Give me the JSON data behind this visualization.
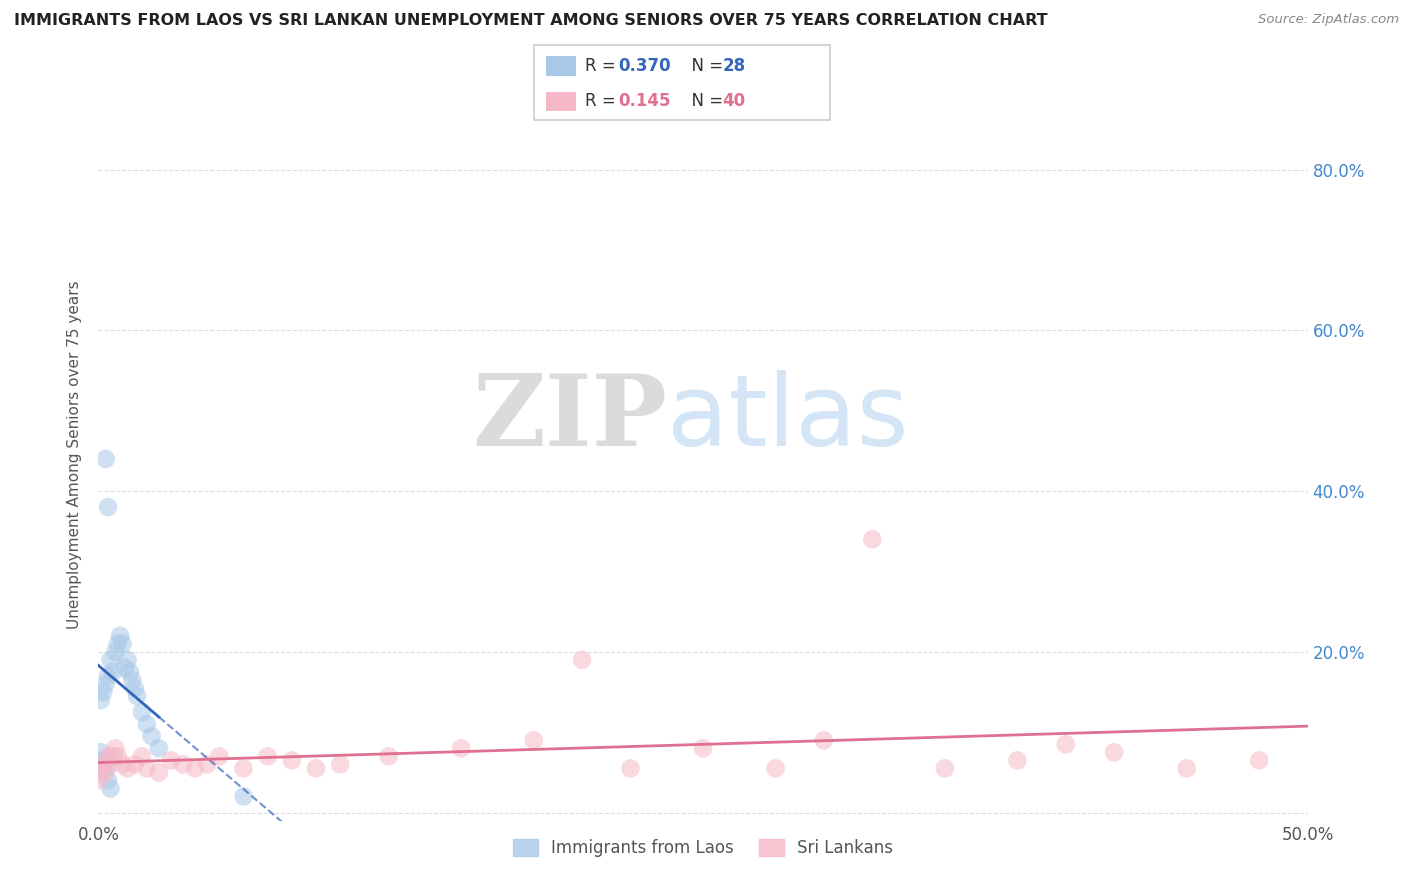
{
  "title": "IMMIGRANTS FROM LAOS VS SRI LANKAN UNEMPLOYMENT AMONG SENIORS OVER 75 YEARS CORRELATION CHART",
  "source": "Source: ZipAtlas.com",
  "ylabel": "Unemployment Among Seniors over 75 years",
  "xlim": [
    0.0,
    0.5
  ],
  "ylim": [
    -0.01,
    0.9
  ],
  "R_laos": 0.37,
  "N_laos": 28,
  "R_sri": 0.145,
  "N_sri": 40,
  "laos_x": [
    0.001,
    0.002,
    0.003,
    0.004,
    0.005,
    0.006,
    0.007,
    0.008,
    0.009,
    0.01,
    0.011,
    0.012,
    0.013,
    0.014,
    0.015,
    0.016,
    0.018,
    0.02,
    0.022,
    0.025,
    0.001,
    0.002,
    0.003,
    0.004,
    0.005,
    0.003,
    0.004,
    0.06
  ],
  "laos_y": [
    0.14,
    0.15,
    0.16,
    0.17,
    0.19,
    0.175,
    0.2,
    0.21,
    0.22,
    0.21,
    0.18,
    0.19,
    0.175,
    0.165,
    0.155,
    0.145,
    0.125,
    0.11,
    0.095,
    0.08,
    0.075,
    0.065,
    0.055,
    0.04,
    0.03,
    0.44,
    0.38,
    0.02
  ],
  "sri_x": [
    0.0,
    0.001,
    0.002,
    0.003,
    0.004,
    0.005,
    0.006,
    0.007,
    0.008,
    0.01,
    0.012,
    0.015,
    0.018,
    0.02,
    0.025,
    0.03,
    0.035,
    0.04,
    0.045,
    0.05,
    0.06,
    0.07,
    0.08,
    0.09,
    0.1,
    0.12,
    0.15,
    0.18,
    0.22,
    0.25,
    0.28,
    0.3,
    0.35,
    0.38,
    0.4,
    0.42,
    0.45,
    0.48,
    0.2,
    0.32
  ],
  "sri_y": [
    0.04,
    0.05,
    0.06,
    0.05,
    0.07,
    0.06,
    0.07,
    0.08,
    0.07,
    0.06,
    0.055,
    0.06,
    0.07,
    0.055,
    0.05,
    0.065,
    0.06,
    0.055,
    0.06,
    0.07,
    0.055,
    0.07,
    0.065,
    0.055,
    0.06,
    0.07,
    0.08,
    0.09,
    0.055,
    0.08,
    0.055,
    0.09,
    0.055,
    0.065,
    0.085,
    0.075,
    0.055,
    0.065,
    0.19,
    0.34
  ],
  "watermark_zip": "ZIP",
  "watermark_atlas": "atlas",
  "background_color": "#ffffff",
  "grid_color": "#dddddd",
  "scatter_alpha": 0.55,
  "scatter_size": 180,
  "laos_color": "#a8c8e8",
  "laos_line_color": "#3366bb",
  "sri_color": "#f5b8c8",
  "sri_line_color": "#e07090",
  "legend_laos_label": "Immigrants from Laos",
  "legend_sri_label": "Sri Lankans"
}
